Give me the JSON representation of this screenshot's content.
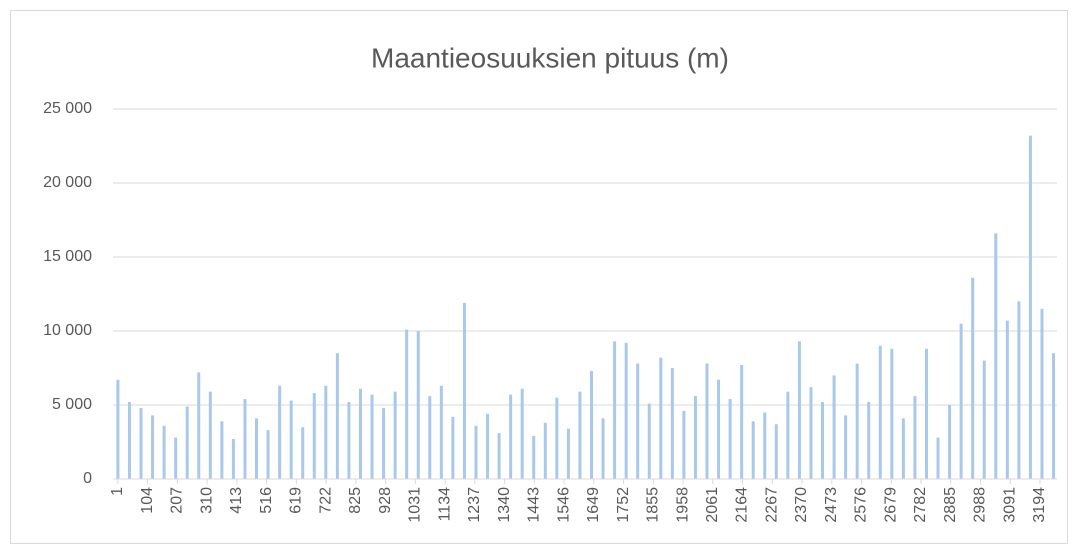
{
  "chart_data": {
    "type": "bar",
    "title": "Maantieosuuksien pituus (m)",
    "x": [
      1,
      41,
      81,
      121,
      161,
      201,
      241,
      281,
      321,
      361,
      401,
      441,
      481,
      521,
      561,
      601,
      641,
      681,
      721,
      761,
      801,
      841,
      881,
      921,
      961,
      1001,
      1041,
      1081,
      1121,
      1161,
      1201,
      1241,
      1281,
      1321,
      1361,
      1401,
      1441,
      1481,
      1521,
      1561,
      1601,
      1641,
      1681,
      1721,
      1761,
      1801,
      1841,
      1881,
      1921,
      1961,
      2001,
      2041,
      2081,
      2121,
      2161,
      2201,
      2241,
      2281,
      2321,
      2361,
      2401,
      2441,
      2481,
      2521,
      2561,
      2601,
      2641,
      2681,
      2721,
      2761,
      2801,
      2841,
      2881,
      2921,
      2961,
      3001,
      3041,
      3081,
      3121,
      3161,
      3201,
      3241
    ],
    "values": [
      6700,
      5200,
      4800,
      4300,
      3600,
      2800,
      4900,
      7200,
      5900,
      3900,
      2700,
      5400,
      4100,
      3300,
      6300,
      5300,
      3500,
      5800,
      6300,
      8500,
      5200,
      6100,
      5700,
      4800,
      5900,
      10100,
      10000,
      5600,
      6300,
      4200,
      11900,
      3600,
      4400,
      3100,
      5700,
      6100,
      2900,
      3800,
      5500,
      3400,
      5900,
      7300,
      4100,
      9300,
      9200,
      7800,
      5100,
      8200,
      7500,
      4600,
      5600,
      7800,
      6700,
      5400,
      7700,
      3900,
      4500,
      3700,
      5900,
      9300,
      6200,
      5200,
      7000,
      4300,
      7800,
      5200,
      9000,
      8800,
      4100,
      5600,
      8800,
      2800,
      5000,
      10500,
      13600,
      8000,
      16600,
      10700,
      12000,
      23200,
      11500,
      8500
    ],
    "color": "#a9c8ea",
    "xlim": [
      -16,
      3253
    ],
    "xticks": [
      1,
      104,
      207,
      310,
      413,
      516,
      619,
      722,
      825,
      928,
      1031,
      1134,
      1237,
      1340,
      1443,
      1546,
      1649,
      1752,
      1855,
      1958,
      2061,
      2164,
      2267,
      2370,
      2473,
      2576,
      2679,
      2782,
      2885,
      2988,
      3091,
      3194
    ],
    "ylim": [
      0,
      25000
    ],
    "yticks": [
      0,
      {
        "value": 5000,
        "label": "5 000"
      },
      {
        "value": 10000,
        "label": "10 000"
      },
      {
        "value": 15000,
        "label": "15 000"
      },
      {
        "value": 20000,
        "label": "20 000"
      },
      {
        "value": 25000,
        "label": "25 000"
      }
    ],
    "grid": true
  }
}
